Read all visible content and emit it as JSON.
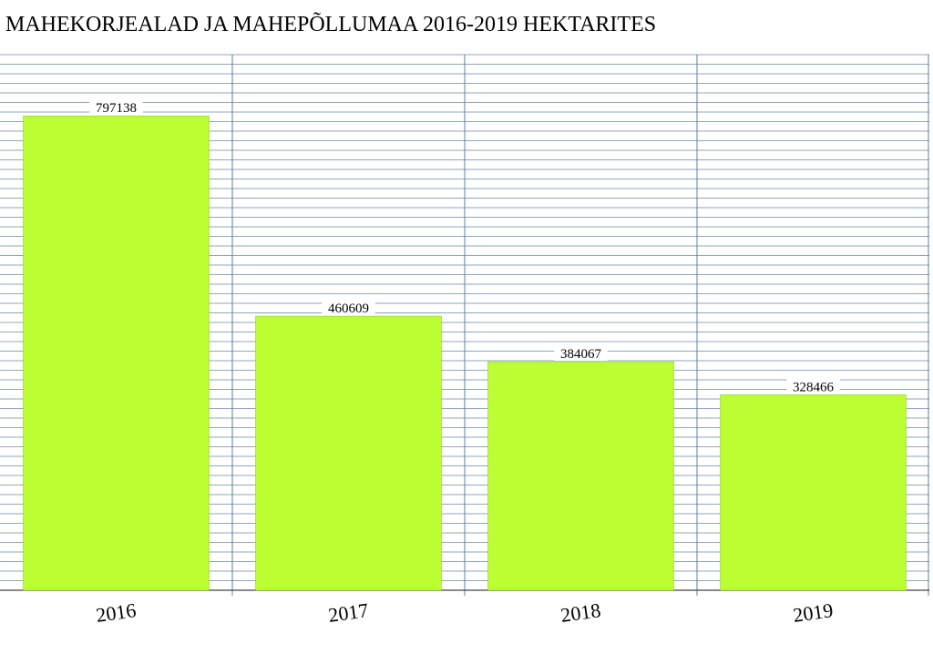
{
  "chart_data": {
    "type": "bar",
    "title": "MAHEKORJEALAD JA MAHEPÕLLUMAA 2016-2019 HEKTARITES",
    "categories": [
      "2016",
      "2017",
      "2018",
      "2019"
    ],
    "values": [
      797138,
      460609,
      384067,
      328466
    ],
    "ylim": [
      0,
      900000
    ],
    "grid": true,
    "legend": "none",
    "colors": {
      "bar": "#bbff33",
      "grid": "#8ea7bf",
      "divider": "#5f7f9f",
      "axis": "#444444"
    }
  }
}
